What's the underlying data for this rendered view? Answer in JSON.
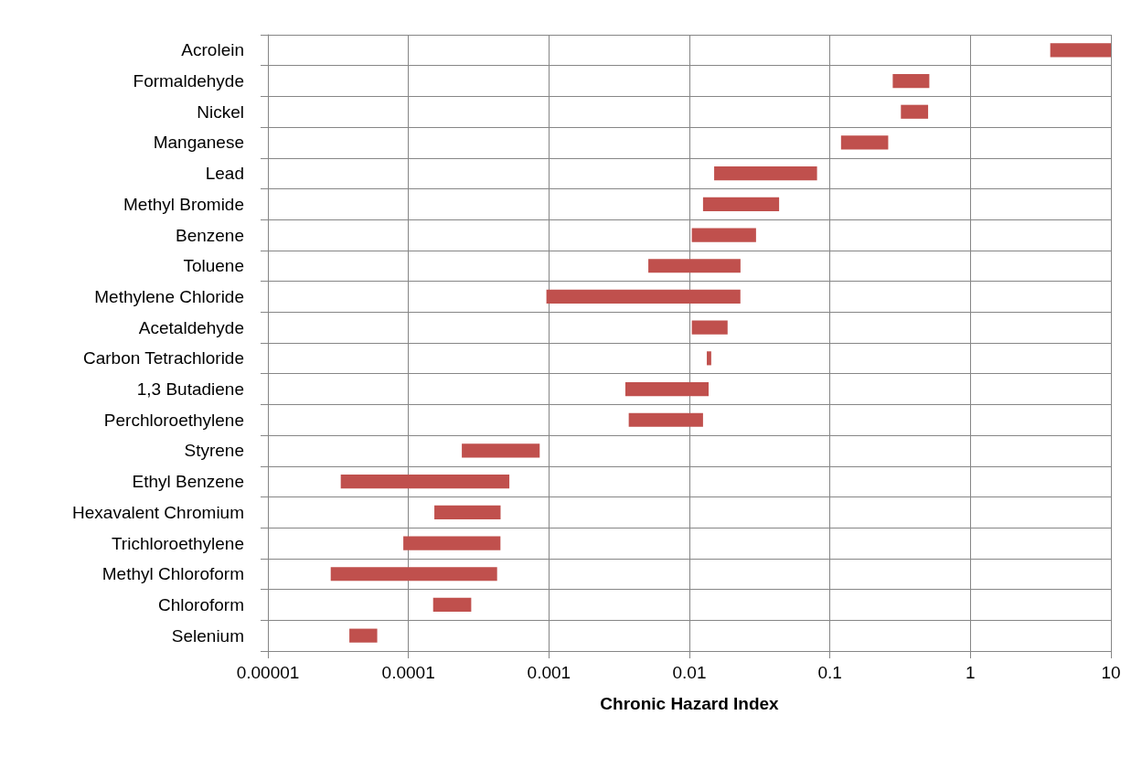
{
  "chart_data": {
    "type": "bar",
    "orientation": "horizontal",
    "log": "x",
    "xlabel": "Chronic Hazard Index",
    "categories": [
      "Acrolein",
      "Formaldehyde",
      "Nickel",
      "Manganese",
      "Lead",
      "Methyl Bromide",
      "Benzene",
      "Toluene",
      "Methylene Chloride",
      "Acetaldehyde",
      "Carbon Tetrachloride",
      "1,3 Butadiene",
      "Perchloroethylene",
      "Styrene",
      "Ethyl Benzene",
      "Hexavalent Chromium",
      "Trichloroethylene",
      "Methyl Chloroform",
      "Chloroform",
      "Selenium"
    ],
    "base": [
      3.7,
      0.28,
      0.32,
      0.12,
      0.015,
      0.0125,
      0.0104,
      0.0051,
      0.00096,
      0.0104,
      0.0133,
      0.0035,
      0.0037,
      0.00024,
      3.3e-05,
      0.000153,
      9.2e-05,
      2.8e-05,
      0.00015,
      3.8e-05
    ],
    "values": [
      6.3,
      0.23,
      0.18,
      0.14,
      0.066,
      0.031,
      0.0194,
      0.018,
      0.0221,
      0.0083,
      0.001,
      0.0102,
      0.0088,
      0.00062,
      0.00049,
      0.0003,
      0.00036,
      0.0004,
      0.00013,
      2.2e-05
    ],
    "color": "#c0504d",
    "xlim": [
      1e-05,
      10
    ],
    "xticks": [
      {
        "value": 1e-05,
        "label": "0.00001"
      },
      0.0001,
      0.001,
      0.01,
      0.1,
      1,
      10
    ],
    "grid": true
  }
}
